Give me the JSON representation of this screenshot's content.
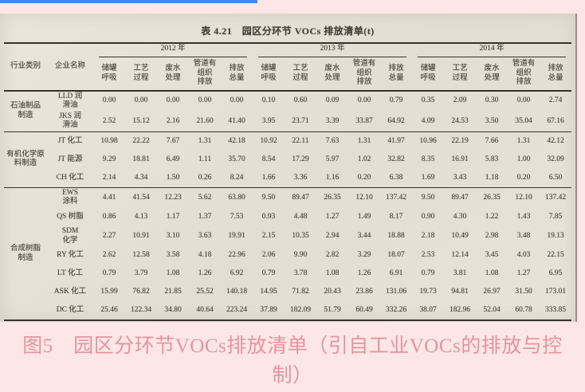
{
  "page": {
    "background_color": "#fce7e6",
    "selection_bar_color": "#4a86e8",
    "caption_color": "#e494a0"
  },
  "scan": {
    "title": "表 4.21　园区分环节 VOCs 排放清单(t)",
    "header": {
      "industry": "行业类别",
      "enterprise": "企业名称",
      "years": [
        "2012 年",
        "2013 年",
        "2014 年"
      ],
      "measures": [
        "储罐\n呼吸",
        "工艺\n过程",
        "废水\n处理",
        "管道有\n组织\n排放",
        "排放\n总量"
      ]
    },
    "groups": [
      {
        "industry": "石油制品\n制造",
        "rows": [
          {
            "name": "LLD 润\n滑油",
            "values": [
              "0.00",
              "0.00",
              "0.00",
              "0.00",
              "0.00",
              "0.10",
              "0.60",
              "0.09",
              "0.00",
              "0.79",
              "0.35",
              "2.09",
              "0.30",
              "0.00",
              "2.74"
            ]
          },
          {
            "name": "JKS 润\n滑油",
            "values": [
              "2.52",
              "15.12",
              "2.16",
              "21.60",
              "41.40",
              "3.95",
              "23.71",
              "3.39",
              "33.87",
              "64.92",
              "4.09",
              "24.53",
              "3.50",
              "35.04",
              "67.16"
            ]
          }
        ]
      },
      {
        "industry": "有机化学原\n料制造",
        "rows": [
          {
            "name": "JT 化工",
            "values": [
              "10.98",
              "22.22",
              "7.67",
              "1.31",
              "42.18",
              "10.92",
              "22.11",
              "7.63",
              "1.31",
              "41.97",
              "10.96",
              "22.19",
              "7.66",
              "1.31",
              "42.12"
            ]
          },
          {
            "name": "JT 能源",
            "values": [
              "9.29",
              "18.81",
              "6.49",
              "1.11",
              "35.70",
              "8.54",
              "17.29",
              "5.97",
              "1.02",
              "32.82",
              "8.35",
              "16.91",
              "5.83",
              "1.00",
              "32.09"
            ]
          },
          {
            "name": "CH 化工",
            "values": [
              "2.14",
              "4.34",
              "1.50",
              "0.26",
              "8.24",
              "1.66",
              "3.36",
              "1.16",
              "0.20",
              "6.38",
              "1.69",
              "3.43",
              "1.18",
              "0.20",
              "6.50"
            ]
          }
        ]
      },
      {
        "industry": "合成树脂\n制造",
        "rows": [
          {
            "name": "EWS\n涂料",
            "values": [
              "4.41",
              "41.54",
              "12.23",
              "5.62",
              "63.80",
              "9.50",
              "89.47",
              "26.35",
              "12.10",
              "137.42",
              "9.50",
              "89.47",
              "26.35",
              "12.10",
              "137.42"
            ]
          },
          {
            "name": "QS 树脂",
            "values": [
              "0.86",
              "4.13",
              "1.17",
              "1.37",
              "7.53",
              "0.93",
              "4.48",
              "1.27",
              "1.49",
              "8.17",
              "0.90",
              "4.30",
              "1.22",
              "1.43",
              "7.85"
            ]
          },
          {
            "name": "SDM\n化学",
            "values": [
              "2.27",
              "10.91",
              "3.10",
              "3.63",
              "19.91",
              "2.15",
              "10.35",
              "2.94",
              "3.44",
              "18.88",
              "2.18",
              "10.49",
              "2.98",
              "3.48",
              "19.13"
            ]
          },
          {
            "name": "RY 化工",
            "values": [
              "2.62",
              "12.58",
              "3.58",
              "4.18",
              "22.96",
              "2.06",
              "9.90",
              "2.82",
              "3.29",
              "18.07",
              "2.53",
              "12.14",
              "3.45",
              "4.03",
              "22.15"
            ]
          },
          {
            "name": "LT 化工",
            "values": [
              "0.79",
              "3.79",
              "1.08",
              "1.26",
              "6.92",
              "0.79",
              "3.78",
              "1.08",
              "1.26",
              "6.91",
              "0.79",
              "3.81",
              "1.08",
              "1.27",
              "6.95"
            ]
          },
          {
            "name": "ASK 化工",
            "values": [
              "15.99",
              "76.82",
              "21.85",
              "25.52",
              "140.18",
              "14.95",
              "71.82",
              "20.43",
              "23.86",
              "131.06",
              "19.73",
              "94.81",
              "26.97",
              "31.50",
              "173.01"
            ]
          },
          {
            "name": "DC 化工",
            "values": [
              "25.46",
              "122.34",
              "34.80",
              "40.64",
              "223.24",
              "37.89",
              "182.09",
              "51.79",
              "60.49",
              "332.26",
              "38.07",
              "182.96",
              "52.04",
              "60.78",
              "333.85"
            ]
          }
        ]
      }
    ]
  },
  "caption": {
    "line1": "图5　园区分环节VOCs排放清单（引自工业VOCs的排放与控",
    "line2": "制）"
  }
}
